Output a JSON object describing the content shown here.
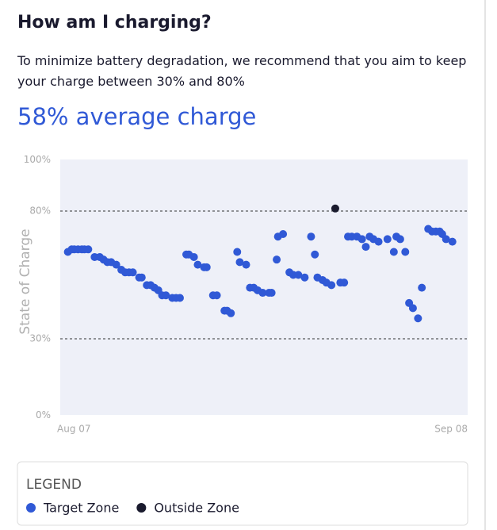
{
  "header": {
    "title": "How am I charging?",
    "description": "To minimize battery degradation, we recommend that you aim to keep your charge between 30% and 80%",
    "average": "58% average charge"
  },
  "chart_data": {
    "type": "scatter",
    "y_label": "State of Charge",
    "xlim": [
      0,
      32
    ],
    "xticks": [
      {
        "value": 0,
        "label": "Aug 07"
      },
      {
        "value": 32,
        "label": "Sep 08"
      }
    ],
    "ylim": [
      0,
      100
    ],
    "yticks": [
      {
        "value": 0,
        "label": "0%"
      },
      {
        "value": 30,
        "label": "30%"
      },
      {
        "value": 80,
        "label": "80%"
      },
      {
        "value": 100,
        "label": "100%"
      }
    ],
    "series": [
      {
        "name": "Target Zone",
        "color": "#3059d6",
        "x": [
          0.6,
          0.9,
          1.1,
          1.4,
          1.7,
          1.9,
          2.2,
          2.7,
          3.1,
          3.4,
          3.7,
          4.0,
          4.4,
          4.8,
          5.1,
          5.4,
          5.7,
          6.2,
          6.4,
          6.8,
          7.1,
          7.4,
          7.7,
          8.0,
          8.3,
          8.8,
          9.1,
          9.4,
          9.9,
          10.1,
          10.5,
          10.8,
          11.3,
          11.5,
          12.0,
          12.3,
          12.9,
          13.1,
          13.4,
          13.9,
          14.1,
          14.6,
          14.9,
          15.2,
          15.5,
          15.9,
          16.4,
          16.6,
          17.0,
          17.1,
          17.5,
          18.0,
          18.3,
          18.7,
          19.2,
          19.7,
          20.0,
          20.2,
          20.6,
          20.9,
          21.3,
          22.0,
          22.3,
          22.6,
          22.9,
          23.3,
          23.7,
          24.0,
          24.3,
          24.6,
          25.0,
          25.7,
          26.2,
          26.4,
          26.7,
          27.1,
          27.4,
          27.7,
          28.1,
          28.4,
          28.9,
          29.2,
          29.5,
          29.8,
          30.0,
          30.3,
          30.8
        ],
        "values": [
          64,
          65,
          65,
          65,
          65,
          65,
          65,
          62,
          62,
          61,
          60,
          60,
          59,
          57,
          56,
          56,
          56,
          54,
          54,
          51,
          51,
          50,
          49,
          47,
          47,
          46,
          46,
          46,
          63,
          63,
          62,
          59,
          58,
          58,
          47,
          47,
          41,
          41,
          40,
          64,
          60,
          59,
          50,
          50,
          49,
          48,
          48,
          48,
          61,
          70,
          71,
          56,
          55,
          55,
          54,
          70,
          63,
          54,
          53,
          52,
          51,
          52,
          52,
          70,
          70,
          70,
          69,
          66,
          70,
          69,
          68,
          69,
          64,
          70,
          69,
          64,
          44,
          42,
          38,
          50,
          73,
          72,
          72,
          72,
          71,
          69,
          68
        ]
      },
      {
        "name": "Outside Zone",
        "color": "#1a1b2e",
        "x": [
          21.6
        ],
        "values": [
          81
        ]
      }
    ]
  },
  "legend_title": "LEGEND"
}
